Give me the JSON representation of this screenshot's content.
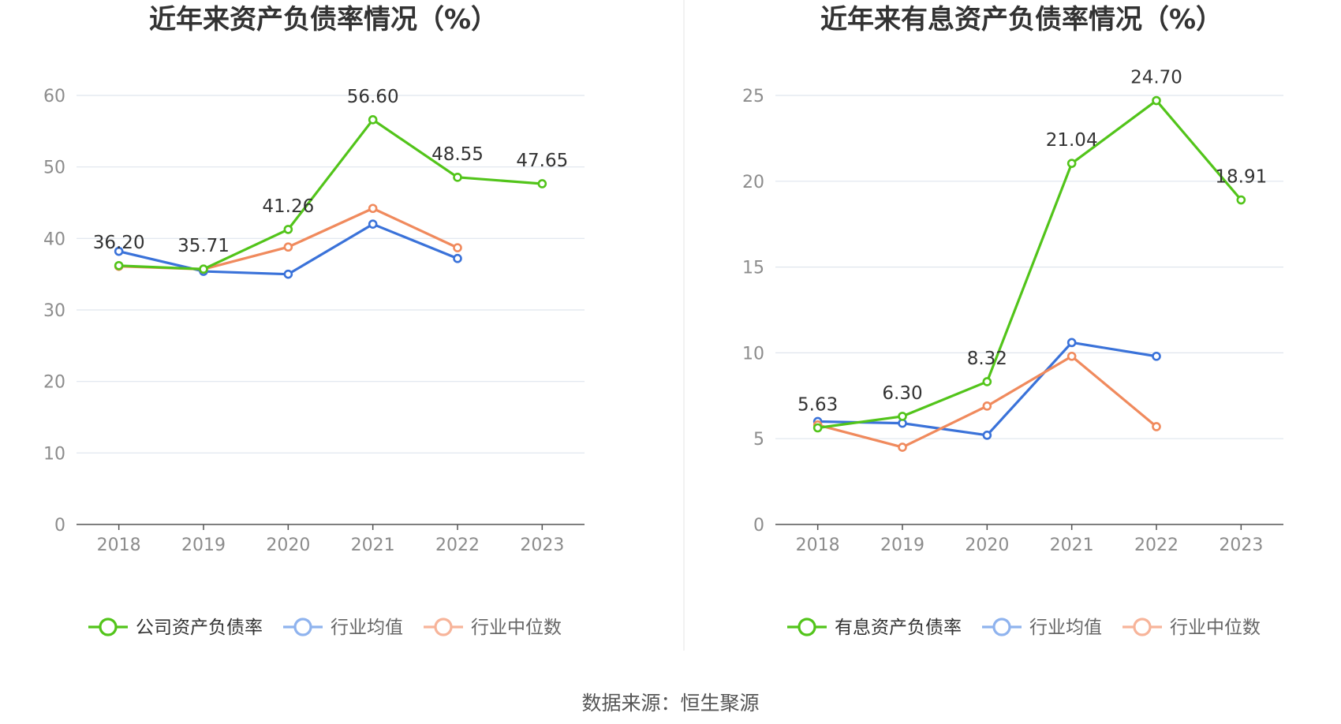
{
  "source": "数据来源：恒生聚源",
  "colors": {
    "company": "#52c41a",
    "avg": "#3a72d9",
    "median": "#f08a5d",
    "avg_legend": "#8fb3ee",
    "median_legend": "#f7b49a",
    "grid": "#dfe5ee",
    "axis": "#555555"
  },
  "chart_data": [
    {
      "type": "line",
      "title": "近年来资产负债率情况（%）",
      "categories": [
        "2018",
        "2019",
        "2020",
        "2021",
        "2022",
        "2023"
      ],
      "y_ticks": [
        "0",
        "10",
        "20",
        "30",
        "40",
        "50",
        "60"
      ],
      "ylim": [
        0,
        60
      ],
      "grid": true,
      "legend_position": "bottom",
      "series": [
        {
          "name": "公司资产负债率",
          "key": "company",
          "values": [
            36.2,
            35.71,
            41.26,
            56.6,
            48.55,
            47.65
          ],
          "labels": [
            "36.20",
            "35.71",
            "41.26",
            "56.60",
            "48.55",
            "47.65"
          ]
        },
        {
          "name": "行业均值",
          "key": "avg",
          "values": [
            38.2,
            35.4,
            35.0,
            42.0,
            37.2,
            null
          ]
        },
        {
          "name": "行业中位数",
          "key": "median",
          "values": [
            36.1,
            35.7,
            38.8,
            44.2,
            38.7,
            null
          ]
        }
      ]
    },
    {
      "type": "line",
      "title": "近年来有息资产负债率情况（%）",
      "categories": [
        "2018",
        "2019",
        "2020",
        "2021",
        "2022",
        "2023"
      ],
      "y_ticks": [
        "0",
        "5",
        "10",
        "15",
        "20",
        "25"
      ],
      "ylim": [
        0,
        25
      ],
      "grid": true,
      "legend_position": "bottom",
      "series": [
        {
          "name": "有息资产负债率",
          "key": "company",
          "values": [
            5.63,
            6.3,
            8.32,
            21.04,
            24.7,
            18.91
          ],
          "labels": [
            "5.63",
            "6.30",
            "8.32",
            "21.04",
            "24.70",
            "18.91"
          ]
        },
        {
          "name": "行业均值",
          "key": "avg",
          "values": [
            6.0,
            5.9,
            5.2,
            10.6,
            9.8,
            null
          ]
        },
        {
          "name": "行业中位数",
          "key": "median",
          "values": [
            5.8,
            4.5,
            6.9,
            9.8,
            5.7,
            null
          ]
        }
      ]
    }
  ]
}
